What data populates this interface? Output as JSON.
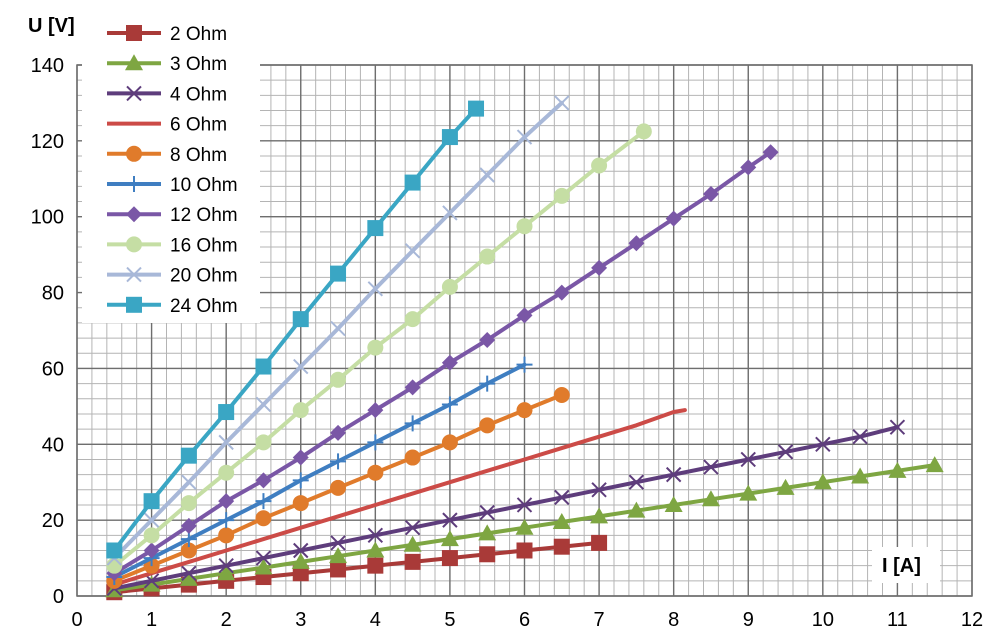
{
  "chart_data": {
    "type": "line",
    "title": "",
    "xlabel": "I [A]",
    "ylabel": "U [V]",
    "xlim": [
      0,
      12
    ],
    "ylim": [
      0,
      140
    ],
    "x_ticks": [
      "0",
      "1",
      "2",
      "3",
      "4",
      "5",
      "6",
      "7",
      "8",
      "9",
      "10",
      "11",
      "12"
    ],
    "y_ticks": [
      "0",
      "20",
      "40",
      "60",
      "80",
      "100",
      "120",
      "140"
    ],
    "grid": {
      "major": true,
      "minor": true,
      "x_minor_step": 0.2,
      "y_minor_step": 4
    },
    "legend_position": "top-left",
    "series": [
      {
        "name": "2 Ohm",
        "color": "#a93a38",
        "marker": "square",
        "points": [
          [
            0.5,
            1
          ],
          [
            1,
            2
          ],
          [
            1.5,
            3
          ],
          [
            2,
            4
          ],
          [
            2.5,
            5
          ],
          [
            3,
            6
          ],
          [
            3.5,
            7
          ],
          [
            4,
            8
          ],
          [
            4.5,
            9
          ],
          [
            5,
            10
          ],
          [
            5.5,
            11
          ],
          [
            6,
            12
          ],
          [
            6.5,
            13
          ],
          [
            7,
            14
          ]
        ]
      },
      {
        "name": "3 Ohm",
        "color": "#7ea642",
        "marker": "triangle",
        "points": [
          [
            0.5,
            1.5
          ],
          [
            1,
            3
          ],
          [
            1.5,
            4.5
          ],
          [
            2,
            6
          ],
          [
            2.5,
            7.5
          ],
          [
            3,
            9
          ],
          [
            3.5,
            10.5
          ],
          [
            4,
            12
          ],
          [
            4.5,
            13.5
          ],
          [
            5,
            15
          ],
          [
            5.5,
            16.5
          ],
          [
            6,
            18
          ],
          [
            6.5,
            19.5
          ],
          [
            7,
            21
          ],
          [
            7.5,
            22.5
          ],
          [
            8,
            24
          ],
          [
            8.5,
            25.5
          ],
          [
            9,
            27
          ],
          [
            9.5,
            28.5
          ],
          [
            10,
            30
          ],
          [
            10.5,
            31.5
          ],
          [
            11,
            33
          ],
          [
            11.5,
            34.5
          ]
        ]
      },
      {
        "name": "4 Ohm",
        "color": "#5e3d7c",
        "marker": "x",
        "points": [
          [
            0.5,
            2
          ],
          [
            1,
            4
          ],
          [
            1.5,
            6
          ],
          [
            2,
            8
          ],
          [
            2.5,
            10
          ],
          [
            3,
            12
          ],
          [
            3.5,
            14
          ],
          [
            4,
            16
          ],
          [
            4.5,
            18
          ],
          [
            5,
            20
          ],
          [
            5.5,
            22
          ],
          [
            6,
            24
          ],
          [
            6.5,
            26
          ],
          [
            7,
            28
          ],
          [
            7.5,
            30
          ],
          [
            8,
            32
          ],
          [
            8.5,
            34
          ],
          [
            9,
            36
          ],
          [
            9.5,
            38
          ],
          [
            10,
            40
          ],
          [
            10.5,
            42
          ],
          [
            11,
            44.5
          ]
        ]
      },
      {
        "name": "6 Ohm",
        "color": "#cc4b47",
        "marker": "none",
        "points": [
          [
            0.5,
            3
          ],
          [
            1,
            6
          ],
          [
            1.5,
            9
          ],
          [
            2,
            12
          ],
          [
            2.5,
            15
          ],
          [
            3,
            18
          ],
          [
            3.5,
            21
          ],
          [
            4,
            24
          ],
          [
            4.5,
            27
          ],
          [
            5,
            30
          ],
          [
            5.5,
            33
          ],
          [
            6,
            36
          ],
          [
            6.5,
            39
          ],
          [
            7,
            42
          ],
          [
            7.5,
            45
          ],
          [
            8,
            48.5
          ],
          [
            8.15,
            49
          ]
        ]
      },
      {
        "name": "8 Ohm",
        "color": "#e07b2b",
        "marker": "circle",
        "points": [
          [
            0.5,
            4
          ],
          [
            1,
            8
          ],
          [
            1.5,
            12
          ],
          [
            2,
            16
          ],
          [
            2.5,
            20.5
          ],
          [
            3,
            24.5
          ],
          [
            3.5,
            28.5
          ],
          [
            4,
            32.5
          ],
          [
            4.5,
            36.5
          ],
          [
            5,
            40.5
          ],
          [
            5.5,
            45
          ],
          [
            6,
            49
          ],
          [
            6.5,
            53
          ]
        ]
      },
      {
        "name": "10 Ohm",
        "color": "#3f7ec1",
        "marker": "plus",
        "points": [
          [
            0.5,
            5
          ],
          [
            1,
            10
          ],
          [
            1.5,
            15
          ],
          [
            2,
            20
          ],
          [
            2.5,
            25
          ],
          [
            3,
            30.5
          ],
          [
            3.5,
            35.5
          ],
          [
            4,
            40.5
          ],
          [
            4.5,
            45.5
          ],
          [
            5,
            50.5
          ],
          [
            5.5,
            56
          ],
          [
            6,
            61
          ]
        ]
      },
      {
        "name": "12 Ohm",
        "color": "#7a57a6",
        "marker": "diamond",
        "points": [
          [
            0.5,
            6
          ],
          [
            1,
            12
          ],
          [
            1.5,
            18.5
          ],
          [
            2,
            25
          ],
          [
            2.5,
            30.5
          ],
          [
            3,
            36.5
          ],
          [
            3.5,
            43
          ],
          [
            4,
            49
          ],
          [
            4.5,
            55
          ],
          [
            5,
            61.5
          ],
          [
            5.5,
            67.5
          ],
          [
            6,
            74
          ],
          [
            6.5,
            80
          ],
          [
            7,
            86.5
          ],
          [
            7.5,
            93
          ],
          [
            8,
            99.5
          ],
          [
            8.5,
            106
          ],
          [
            9,
            113
          ],
          [
            9.3,
            117
          ]
        ]
      },
      {
        "name": "16 Ohm",
        "color": "#c5dea4",
        "marker": "circle",
        "points": [
          [
            0.5,
            8
          ],
          [
            1,
            16
          ],
          [
            1.5,
            24.5
          ],
          [
            2,
            32.5
          ],
          [
            2.5,
            40.5
          ],
          [
            3,
            49
          ],
          [
            3.5,
            57
          ],
          [
            4,
            65.5
          ],
          [
            4.5,
            73
          ],
          [
            5,
            81.5
          ],
          [
            5.5,
            89.5
          ],
          [
            6,
            97.5
          ],
          [
            6.5,
            105.5
          ],
          [
            7,
            113.5
          ],
          [
            7.6,
            122.5
          ]
        ]
      },
      {
        "name": "20 Ohm",
        "color": "#a8b8d8",
        "marker": "x",
        "points": [
          [
            0.5,
            10
          ],
          [
            1,
            20
          ],
          [
            1.5,
            30
          ],
          [
            2,
            40.5
          ],
          [
            2.5,
            50.5
          ],
          [
            3,
            60.5
          ],
          [
            3.5,
            70.5
          ],
          [
            4,
            81
          ],
          [
            4.5,
            91
          ],
          [
            5,
            101
          ],
          [
            5.5,
            111
          ],
          [
            6,
            121
          ],
          [
            6.5,
            130
          ]
        ]
      },
      {
        "name": "24 Ohm",
        "color": "#3aa6c4",
        "marker": "square",
        "points": [
          [
            0.5,
            12
          ],
          [
            1,
            25
          ],
          [
            1.5,
            37
          ],
          [
            2,
            48.5
          ],
          [
            2.5,
            60.5
          ],
          [
            3,
            73
          ],
          [
            3.5,
            85
          ],
          [
            4,
            97
          ],
          [
            4.5,
            109
          ],
          [
            5,
            121
          ],
          [
            5.35,
            128.5
          ]
        ]
      }
    ]
  }
}
